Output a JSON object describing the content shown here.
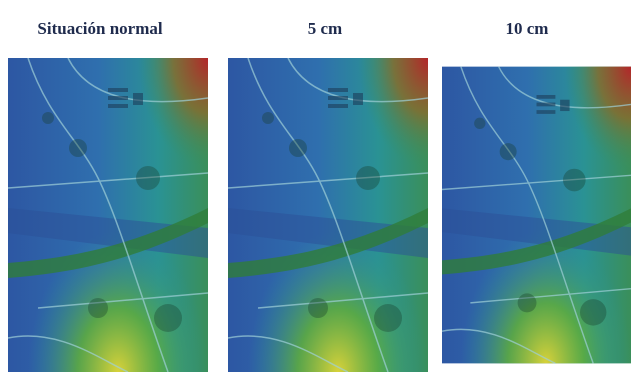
{
  "panels": [
    {
      "title": "Situación normal"
    },
    {
      "title": "5 cm"
    },
    {
      "title": "10 cm"
    }
  ]
}
